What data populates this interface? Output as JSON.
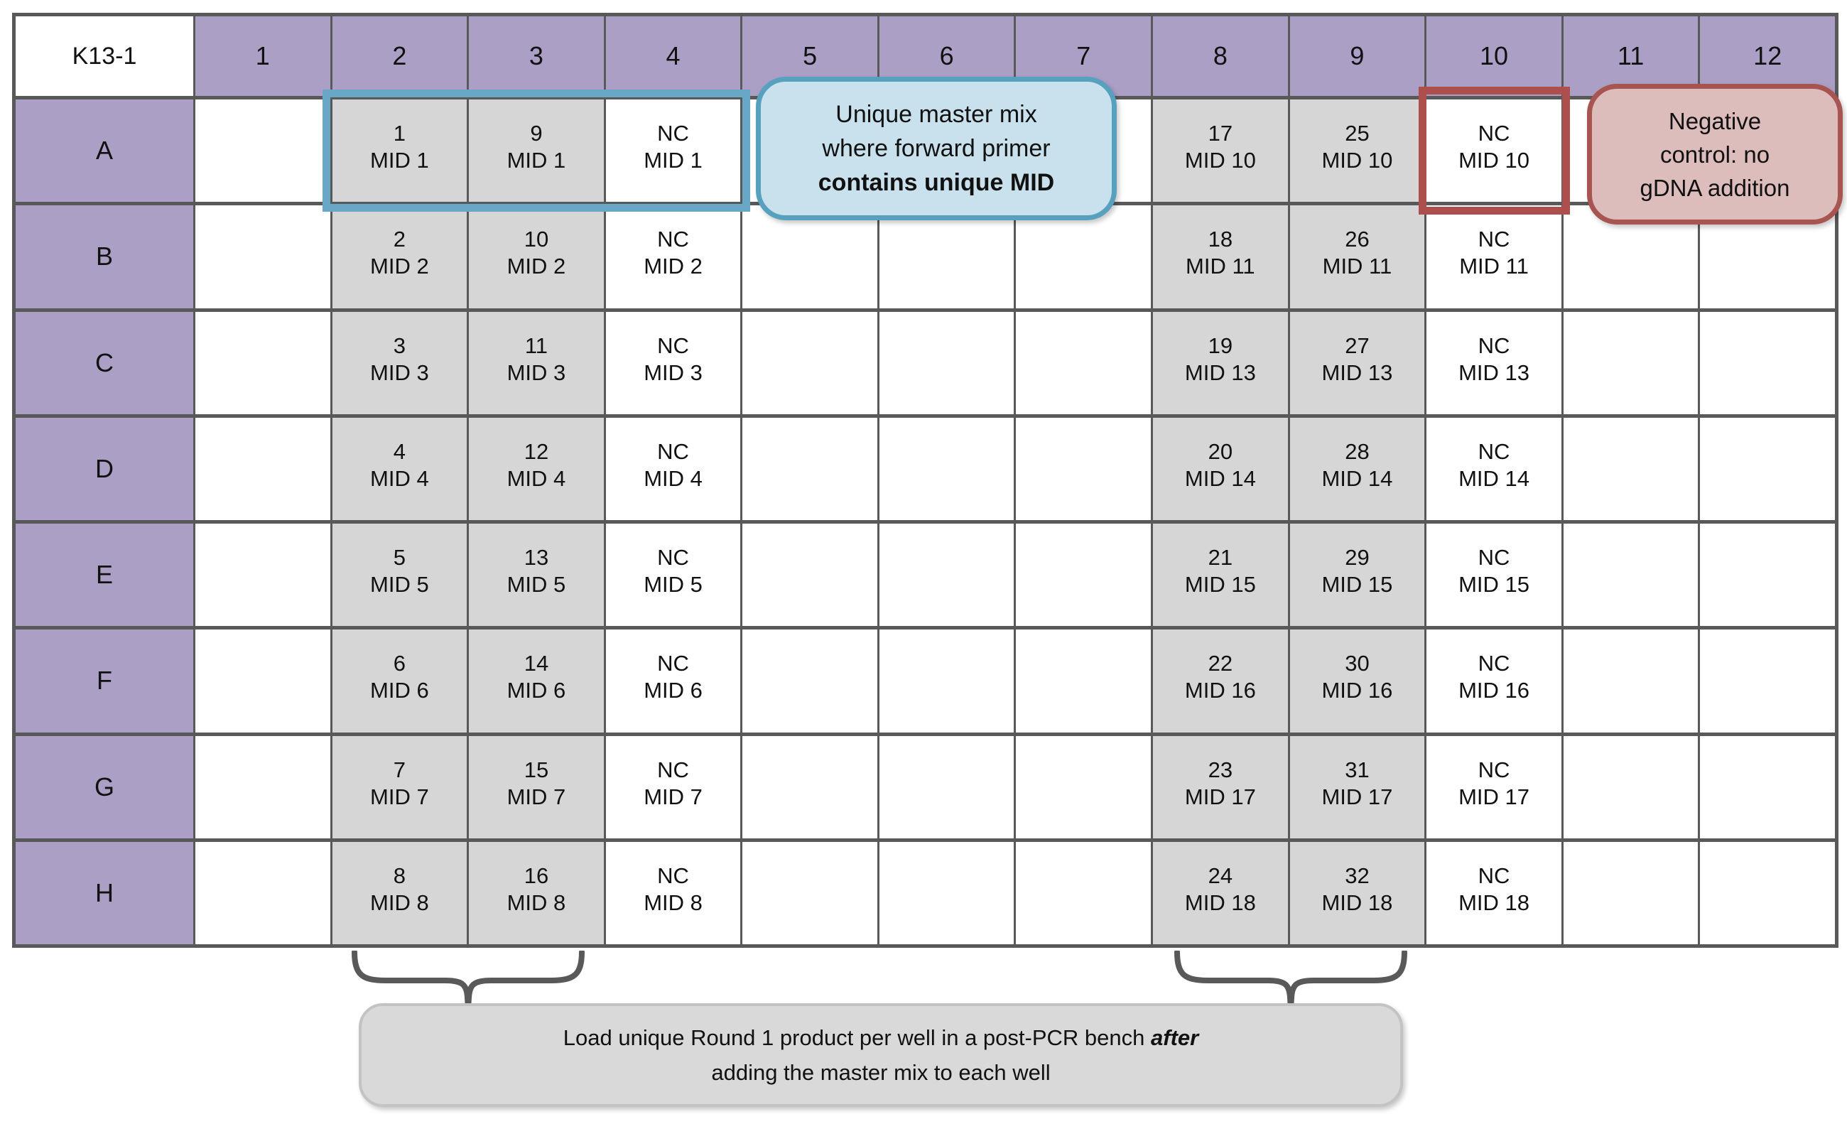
{
  "plate": {
    "corner_label": "K13-1",
    "column_headers": [
      "1",
      "2",
      "3",
      "4",
      "5",
      "6",
      "7",
      "8",
      "9",
      "10",
      "11",
      "12"
    ],
    "rows": [
      {
        "label": "A",
        "cells": [
          null,
          {
            "top": "1",
            "bottom": "MID 1",
            "shaded": true
          },
          {
            "top": "9",
            "bottom": "MID 1",
            "shaded": true
          },
          {
            "top": "NC",
            "bottom": "MID 1",
            "shaded": false
          },
          null,
          null,
          null,
          {
            "top": "17",
            "bottom": "MID 10",
            "shaded": true
          },
          {
            "top": "25",
            "bottom": "MID 10",
            "shaded": true
          },
          {
            "top": "NC",
            "bottom": "MID 10",
            "shaded": false
          },
          null,
          null
        ]
      },
      {
        "label": "B",
        "cells": [
          null,
          {
            "top": "2",
            "bottom": "MID 2",
            "shaded": true
          },
          {
            "top": "10",
            "bottom": "MID 2",
            "shaded": true
          },
          {
            "top": "NC",
            "bottom": "MID 2",
            "shaded": false
          },
          null,
          null,
          null,
          {
            "top": "18",
            "bottom": "MID 11",
            "shaded": true
          },
          {
            "top": "26",
            "bottom": "MID 11",
            "shaded": true
          },
          {
            "top": "NC",
            "bottom": "MID 11",
            "shaded": false
          },
          null,
          null
        ]
      },
      {
        "label": "C",
        "cells": [
          null,
          {
            "top": "3",
            "bottom": "MID 3",
            "shaded": true
          },
          {
            "top": "11",
            "bottom": "MID 3",
            "shaded": true
          },
          {
            "top": "NC",
            "bottom": "MID 3",
            "shaded": false
          },
          null,
          null,
          null,
          {
            "top": "19",
            "bottom": "MID 13",
            "shaded": true
          },
          {
            "top": "27",
            "bottom": "MID 13",
            "shaded": true
          },
          {
            "top": "NC",
            "bottom": "MID 13",
            "shaded": false
          },
          null,
          null
        ]
      },
      {
        "label": "D",
        "cells": [
          null,
          {
            "top": "4",
            "bottom": "MID 4",
            "shaded": true
          },
          {
            "top": "12",
            "bottom": "MID 4",
            "shaded": true
          },
          {
            "top": "NC",
            "bottom": "MID 4",
            "shaded": false
          },
          null,
          null,
          null,
          {
            "top": "20",
            "bottom": "MID 14",
            "shaded": true
          },
          {
            "top": "28",
            "bottom": "MID 14",
            "shaded": true
          },
          {
            "top": "NC",
            "bottom": "MID 14",
            "shaded": false
          },
          null,
          null
        ]
      },
      {
        "label": "E",
        "cells": [
          null,
          {
            "top": "5",
            "bottom": "MID 5",
            "shaded": true
          },
          {
            "top": "13",
            "bottom": "MID 5",
            "shaded": true
          },
          {
            "top": "NC",
            "bottom": "MID 5",
            "shaded": false
          },
          null,
          null,
          null,
          {
            "top": "21",
            "bottom": "MID 15",
            "shaded": true
          },
          {
            "top": "29",
            "bottom": "MID 15",
            "shaded": true
          },
          {
            "top": "NC",
            "bottom": "MID 15",
            "shaded": false
          },
          null,
          null
        ]
      },
      {
        "label": "F",
        "cells": [
          null,
          {
            "top": "6",
            "bottom": "MID 6",
            "shaded": true
          },
          {
            "top": "14",
            "bottom": "MID 6",
            "shaded": true
          },
          {
            "top": "NC",
            "bottom": "MID 6",
            "shaded": false
          },
          null,
          null,
          null,
          {
            "top": "22",
            "bottom": "MID 16",
            "shaded": true
          },
          {
            "top": "30",
            "bottom": "MID 16",
            "shaded": true
          },
          {
            "top": "NC",
            "bottom": "MID 16",
            "shaded": false
          },
          null,
          null
        ]
      },
      {
        "label": "G",
        "cells": [
          null,
          {
            "top": "7",
            "bottom": "MID 7",
            "shaded": true
          },
          {
            "top": "15",
            "bottom": "MID 7",
            "shaded": true
          },
          {
            "top": "NC",
            "bottom": "MID 7",
            "shaded": false
          },
          null,
          null,
          null,
          {
            "top": "23",
            "bottom": "MID 17",
            "shaded": true
          },
          {
            "top": "31",
            "bottom": "MID 17",
            "shaded": true
          },
          {
            "top": "NC",
            "bottom": "MID 17",
            "shaded": false
          },
          null,
          null
        ]
      },
      {
        "label": "H",
        "cells": [
          null,
          {
            "top": "8",
            "bottom": "MID 8",
            "shaded": true
          },
          {
            "top": "16",
            "bottom": "MID 8",
            "shaded": true
          },
          {
            "top": "NC",
            "bottom": "MID 8",
            "shaded": false
          },
          null,
          null,
          null,
          {
            "top": "24",
            "bottom": "MID 18",
            "shaded": true
          },
          {
            "top": "32",
            "bottom": "MID 18",
            "shaded": true
          },
          {
            "top": "NC",
            "bottom": "MID 18",
            "shaded": false
          },
          null,
          null
        ]
      }
    ]
  },
  "callouts": {
    "master_mix": {
      "lines": [
        "Unique master mix",
        "where forward primer",
        "contains unique MID"
      ]
    },
    "negative_control": {
      "lines": [
        "Negative",
        "control: no",
        "gDNA addition"
      ]
    },
    "load_instruction": {
      "line1_prefix": "Load unique Round 1 product per well in a post-PCR bench ",
      "line1_emphasis": "after",
      "line2": "adding the master mix to each well"
    }
  },
  "colors": {
    "header_purple": "#ab9fc5",
    "well_gray": "#d6d6d6",
    "grid_line": "#595959",
    "blue_highlight": "#68a8c6",
    "blue_callout_bg": "#c8e1ec",
    "blue_callout_border": "#57a1bf",
    "red_highlight": "#ad504d",
    "red_callout_bg": "#dcbdbc",
    "red_callout_border": "#a85450",
    "instruction_bg": "#d9d9d9",
    "instruction_border": "#c3c3c3"
  }
}
